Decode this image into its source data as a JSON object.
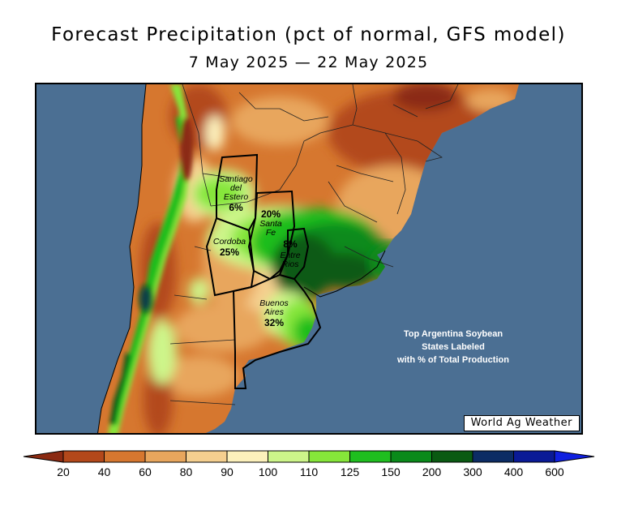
{
  "title": "Forecast Precipitation (pct of normal, GFS model)",
  "subtitle": "7 May 2025 — 22 May 2025",
  "note_lines": [
    "Top Argentina Soybean",
    "States Labeled",
    "with % of Total Production"
  ],
  "credit": "World Ag Weather",
  "states": [
    {
      "name_lines": [
        "Santiago",
        "del",
        "Estero"
      ],
      "pct": "6%"
    },
    {
      "name_lines": [
        "Santa",
        "Fe"
      ],
      "pct": "20%"
    },
    {
      "name_lines": [
        "Cordoba"
      ],
      "pct": "25%"
    },
    {
      "name_lines": [
        "Entre",
        "Rios"
      ],
      "pct": "8%"
    },
    {
      "name_lines": [
        "Buenos",
        "Aires"
      ],
      "pct": "32%"
    }
  ],
  "legend": {
    "ticks": [
      "20",
      "40",
      "60",
      "80",
      "90",
      "100",
      "110",
      "125",
      "150",
      "200",
      "300",
      "400",
      "600"
    ],
    "colors": [
      "#8b2a12",
      "#b3481a",
      "#d6772f",
      "#e8a65d",
      "#f5cf8f",
      "#fcf0bb",
      "#cdf58a",
      "#86e63a",
      "#1fbe1f",
      "#0a8a1a",
      "#0a5a12",
      "#0c2c64",
      "#0a1a96",
      "#1020e0"
    ]
  }
}
